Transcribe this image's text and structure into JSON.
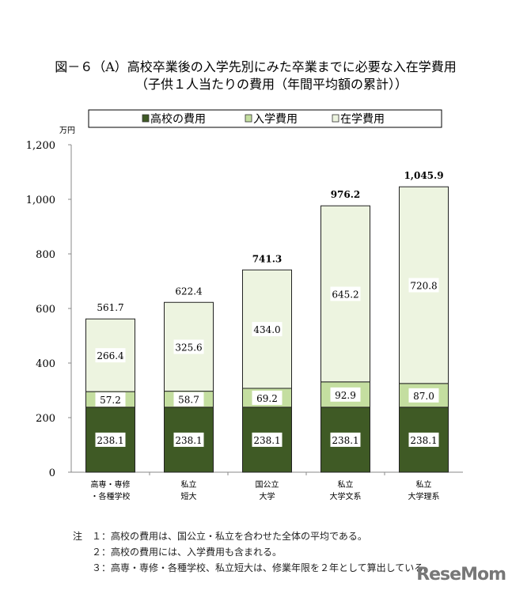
{
  "chart_data": {
    "type": "bar",
    "stacked": true,
    "title": "図－６（A）高校卒業後の入学先別にみた卒業までに必要な入在学費用",
    "subtitle": "（子供１人当たりの費用（年間平均額の累計））",
    "ylabel": "万円",
    "ylim": [
      0,
      1200
    ],
    "yticks": [
      0,
      200,
      400,
      600,
      800,
      1000,
      1200
    ],
    "ytick_labels": [
      "0",
      "200",
      "400",
      "600",
      "800",
      "1,000",
      "1,200"
    ],
    "categories": [
      [
        "高専・専修",
        "・各種学校"
      ],
      [
        "私立",
        "短大"
      ],
      [
        "国公立",
        "大学"
      ],
      [
        "私立",
        "大学文系"
      ],
      [
        "私立",
        "大学理系"
      ]
    ],
    "series": [
      {
        "name": "高校の費用",
        "color": "#3f5a25",
        "values": [
          238.1,
          238.1,
          238.1,
          238.1,
          238.1
        ],
        "labels": [
          "238.1",
          "238.1",
          "238.1",
          "238.1",
          "238.1"
        ]
      },
      {
        "name": "入学費用",
        "color": "#c4dea0",
        "values": [
          57.2,
          58.7,
          69.2,
          92.9,
          87.0
        ],
        "labels": [
          "57.2",
          "58.7",
          "69.2",
          "92.9",
          "87.0"
        ]
      },
      {
        "name": "在学費用",
        "color": "#edf4e0",
        "values": [
          266.4,
          325.6,
          434.0,
          645.2,
          720.8
        ],
        "labels": [
          "266.4",
          "325.6",
          "434.0",
          "645.2",
          "720.8"
        ]
      }
    ],
    "totals": [
      561.7,
      622.4,
      741.3,
      976.2,
      1045.9
    ],
    "total_labels": [
      "561.7",
      "622.4",
      "741.3",
      "976.2",
      "1,045.9"
    ],
    "total_bold": [
      false,
      false,
      true,
      true,
      true
    ],
    "legend_position": "top",
    "grid": false
  },
  "notes": [
    "注　１：高校の費用は、国公立・私立を合わせた全体の平均である。",
    "　　２：高校の費用には、入学費用も含まれる。",
    "　　３：高専・専修・各種学校、私立短大は、修業年限を２年として算出している。"
  ],
  "watermark": "ReseMom"
}
